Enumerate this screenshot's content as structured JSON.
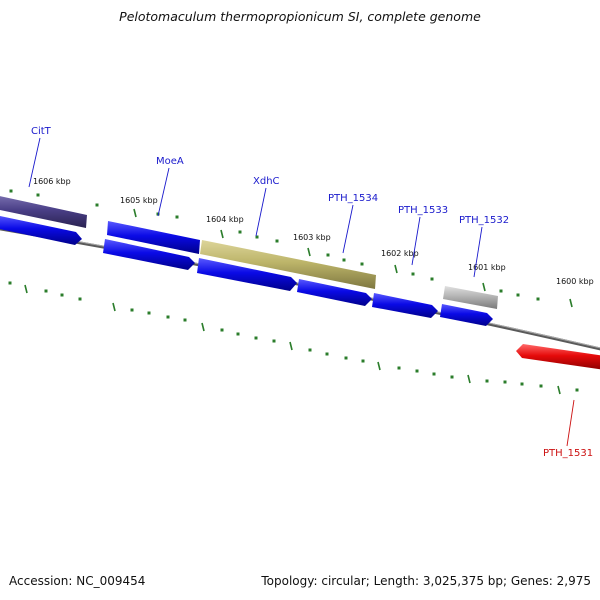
{
  "title": "Pelotomaculum thermopropionicum SI, complete genome",
  "footer": {
    "accession_label": "Accession: NC_009454",
    "summary": "Topology: circular; Length: 3,025,375 bp; Genes: 2,975"
  },
  "colors": {
    "background": "#ffffff",
    "backbone": "#777777",
    "tick": "#2b7d2b",
    "gene_blue": "#0a0ae6",
    "gene_label_blue": "#1a1acc",
    "gene_red": "#e60a0a",
    "gene_label_red": "#cc1111",
    "gene_olive": "#bdb56a",
    "gene_purple": "#4a3f87",
    "gene_gray": "#b4b4b4"
  },
  "scale_labels": [
    "1606 kbp",
    "1605 kbp",
    "1604 kbp",
    "1603 kbp",
    "1602 kbp",
    "1601 kbp",
    "1600 kbp"
  ],
  "gene_labels": [
    {
      "name": "CitT",
      "color": "blue"
    },
    {
      "name": "MoeA",
      "color": "blue"
    },
    {
      "name": "XdhC",
      "color": "blue"
    },
    {
      "name": "PTH_1534",
      "color": "blue"
    },
    {
      "name": "PTH_1533",
      "color": "blue"
    },
    {
      "name": "PTH_1532",
      "color": "blue"
    },
    {
      "name": "PTH_1531",
      "color": "red"
    }
  ],
  "features": [
    {
      "name": "CitT-feature",
      "color": "purple",
      "strand": "forward"
    },
    {
      "name": "gene-left-edge",
      "color": "blue",
      "strand": "forward"
    },
    {
      "name": "MoeA-feature",
      "color": "blue",
      "strand": "forward"
    },
    {
      "name": "gene-under-MoeA",
      "color": "blue",
      "strand": "forward"
    },
    {
      "name": "XdhC-feature",
      "color": "olive",
      "strand": "forward"
    },
    {
      "name": "gene-under-XdhC",
      "color": "blue",
      "strand": "forward"
    },
    {
      "name": "PTH_1534-feature",
      "color": "blue",
      "strand": "forward"
    },
    {
      "name": "PTH_1533-feature",
      "color": "blue",
      "strand": "forward"
    },
    {
      "name": "PTH_1532-feature",
      "color": "gray",
      "strand": "forward"
    },
    {
      "name": "gene-under-PTH_1532",
      "color": "blue",
      "strand": "forward"
    },
    {
      "name": "PTH_1531-feature",
      "color": "red",
      "strand": "reverse"
    }
  ]
}
